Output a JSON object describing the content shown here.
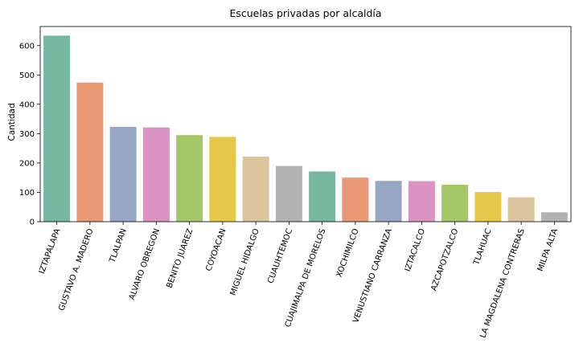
{
  "chart_data": {
    "type": "bar",
    "title": "Escuelas privadas por alcaldía",
    "xlabel": "",
    "ylabel": "Cantidad",
    "ylim": [
      0,
      665
    ],
    "yticks": [
      0,
      100,
      200,
      300,
      400,
      500,
      600
    ],
    "grid": false,
    "categories": [
      "IZTAPALAPA",
      "GUSTAVO A. MADERO",
      "TLALPAN",
      "ALVARO OBREGON",
      "BENITO JUAREZ",
      "COYOACAN",
      "MIGUEL HIDALGO",
      "CUAUHTEMOC",
      "CUAJIMALPA DE MORELOS",
      "XOCHIMILCO",
      "VENUSTIANO CARRANZA",
      "IZTACALCO",
      "AZCAPOTZALCO",
      "TLAHUAC",
      "LA MAGDALENA CONTRERAS",
      "MILPA ALTA"
    ],
    "values": [
      634,
      474,
      323,
      321,
      295,
      289,
      222,
      190,
      171,
      150,
      139,
      138,
      126,
      101,
      83,
      32
    ],
    "colors": [
      "#76b7a0",
      "#e99a74",
      "#97a6c5",
      "#db93c3",
      "#a4c867",
      "#e6c849",
      "#dcc49e",
      "#b3b3b3",
      "#76b7a0",
      "#e99a74",
      "#97a6c5",
      "#db93c3",
      "#a4c867",
      "#e6c849",
      "#dcc49e",
      "#b3b3b3"
    ]
  }
}
